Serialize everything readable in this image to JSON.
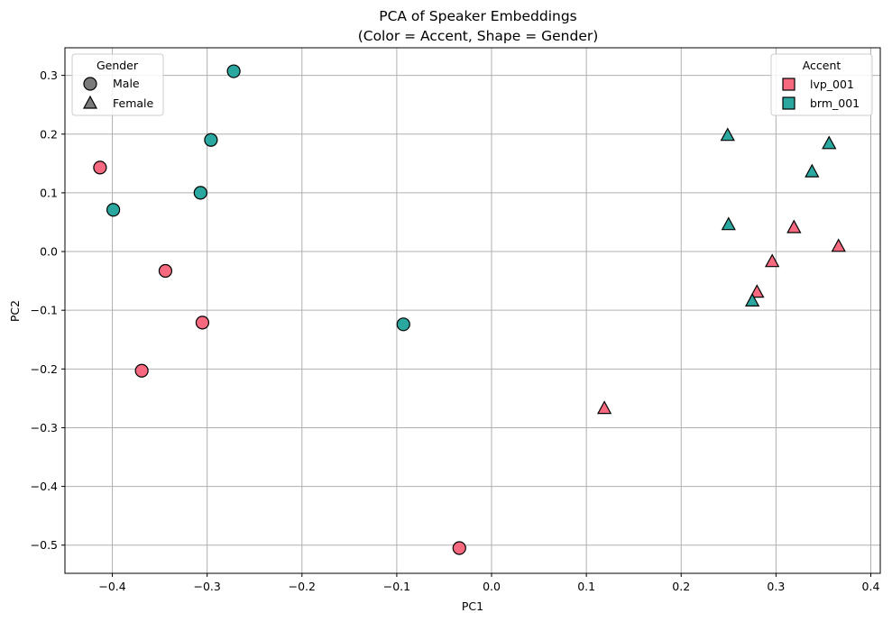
{
  "chart_data": {
    "type": "scatter",
    "title": "PCA of Speaker Embeddings",
    "subtitle": "(Color = Accent, Shape = Gender)",
    "xlabel": "PC1",
    "ylabel": "PC2",
    "xlim": [
      -0.45,
      0.41
    ],
    "ylim": [
      -0.548,
      0.347
    ],
    "xticks": [
      -0.4,
      -0.3,
      -0.2,
      -0.1,
      0.0,
      0.1,
      0.2,
      0.3,
      0.4
    ],
    "xtick_labels": [
      "−0.4",
      "−0.3",
      "−0.2",
      "−0.1",
      "0.0",
      "0.1",
      "0.2",
      "0.3",
      "0.4"
    ],
    "yticks": [
      0.3,
      0.2,
      0.1,
      0.0,
      -0.1,
      -0.2,
      -0.3,
      -0.4,
      -0.5
    ],
    "ytick_labels": [
      "0.3",
      "0.2",
      "0.1",
      "0.0",
      "−0.1",
      "−0.2",
      "−0.3",
      "−0.4",
      "−0.5"
    ],
    "grid": true,
    "colors": {
      "lvp_001": "#f6697f",
      "brm_001": "#2aa8a0",
      "edge": "#000000"
    },
    "accent_legend": {
      "title": "Accent",
      "position": "top-right",
      "entries": [
        {
          "label": "lvp_001",
          "accent": "lvp_001"
        },
        {
          "label": "brm_001",
          "accent": "brm_001"
        }
      ]
    },
    "gender_legend": {
      "title": "Gender",
      "position": "top-left",
      "color": "#7a7a7a",
      "entries": [
        {
          "label": "Male",
          "shape": "circle"
        },
        {
          "label": "Female",
          "shape": "triangle"
        }
      ]
    },
    "series": [
      {
        "name": "lvp_001 Male",
        "accent": "lvp_001",
        "gender": "Male",
        "shape": "circle",
        "points": [
          [
            -0.413,
            0.143
          ],
          [
            -0.344,
            -0.033
          ],
          [
            -0.305,
            -0.121
          ],
          [
            -0.369,
            -0.203
          ],
          [
            -0.034,
            -0.505
          ]
        ]
      },
      {
        "name": "brm_001 Male",
        "accent": "brm_001",
        "gender": "Male",
        "shape": "circle",
        "points": [
          [
            -0.272,
            0.307
          ],
          [
            -0.296,
            0.19
          ],
          [
            -0.307,
            0.1
          ],
          [
            -0.399,
            0.071
          ],
          [
            -0.093,
            -0.124
          ]
        ]
      },
      {
        "name": "lvp_001 Female",
        "accent": "lvp_001",
        "gender": "Female",
        "shape": "triangle",
        "points": [
          [
            0.319,
            0.041
          ],
          [
            0.366,
            0.009
          ],
          [
            0.296,
            -0.017
          ],
          [
            0.28,
            -0.069
          ],
          [
            0.119,
            -0.267
          ]
        ]
      },
      {
        "name": "brm_001 Female",
        "accent": "brm_001",
        "gender": "Female",
        "shape": "triangle",
        "points": [
          [
            0.249,
            0.198
          ],
          [
            0.356,
            0.184
          ],
          [
            0.338,
            0.136
          ],
          [
            0.25,
            0.046
          ],
          [
            0.275,
            -0.084
          ]
        ]
      }
    ]
  }
}
